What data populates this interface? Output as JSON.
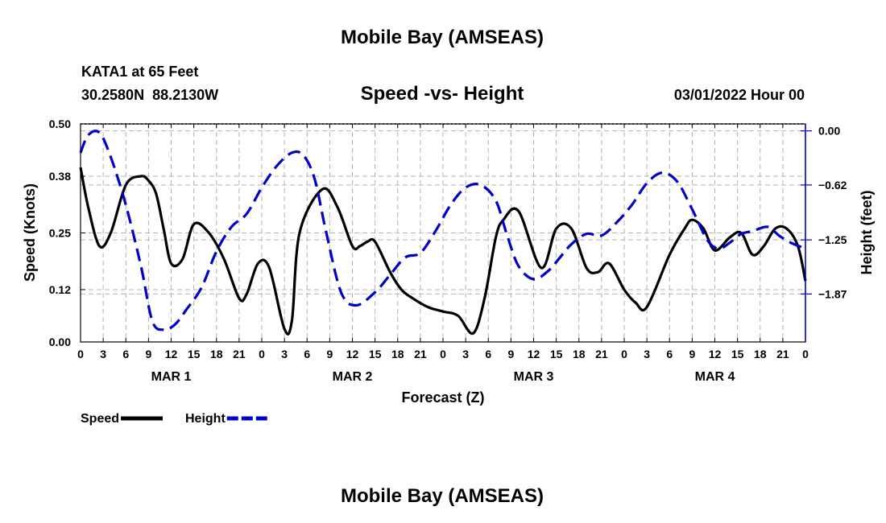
{
  "chart_data": {
    "type": "line",
    "title": "Mobile Bay (AMSEAS)",
    "footer_title": "Mobile Bay (AMSEAS)",
    "station": "KATA1 at 65 Feet",
    "coordinates": "30.2580N  88.2130W",
    "subtitle": "Speed -vs- Height",
    "datetime": "03/01/2022 Hour 00",
    "xlabel": "Forecast (Z)",
    "ylabel_left": "Speed (Knots)",
    "ylabel_right": "Height (feet)",
    "x_hour_range": [
      0,
      96
    ],
    "x_tick_labels": [
      "0",
      "3",
      "6",
      "9",
      "12",
      "15",
      "18",
      "21",
      "0",
      "3",
      "6",
      "9",
      "12",
      "15",
      "18",
      "21",
      "0",
      "3",
      "6",
      "9",
      "12",
      "15",
      "18",
      "21",
      "0",
      "3",
      "6",
      "9",
      "12",
      "15",
      "18",
      "21",
      "0"
    ],
    "day_labels": [
      {
        "label": "MAR 1",
        "hour": 12
      },
      {
        "label": "MAR 2",
        "hour": 36
      },
      {
        "label": "MAR 3",
        "hour": 60
      },
      {
        "label": "MAR 4",
        "hour": 84
      }
    ],
    "y_left": {
      "range": [
        0,
        0.5
      ],
      "ticks": [
        0.0,
        0.12,
        0.25,
        0.38,
        0.5
      ],
      "labels": [
        "0.00",
        "0.12",
        "0.25",
        "0.38",
        "0.50"
      ]
    },
    "y_right": {
      "range": [
        -2.42,
        0.08
      ],
      "ticks": [
        0.0,
        -0.62,
        -1.25,
        -1.87
      ],
      "labels": [
        "0.00",
        "−0.62",
        "−1.25",
        "−1.87"
      ]
    },
    "series": [
      {
        "name": "Speed",
        "axis": "left",
        "color": "#000000",
        "style": "solid",
        "x": [
          0,
          1,
          2.5,
          4,
          6,
          8,
          9,
          10,
          11,
          12,
          13.5,
          15,
          17,
          19,
          21,
          22,
          23.5,
          25,
          27,
          28,
          29,
          32,
          34,
          36,
          37,
          38,
          39,
          41,
          42.5,
          44,
          46,
          48,
          50,
          52,
          53.5,
          55,
          56,
          58,
          61,
          63,
          65,
          67,
          68.5,
          70,
          72,
          73.5,
          75,
          78,
          80,
          81,
          82.5,
          84,
          86,
          87.5,
          89,
          90.5,
          92,
          93.5,
          95,
          96
        ],
        "values": [
          0.4,
          0.31,
          0.22,
          0.25,
          0.36,
          0.38,
          0.37,
          0.34,
          0.26,
          0.18,
          0.19,
          0.27,
          0.25,
          0.19,
          0.1,
          0.11,
          0.18,
          0.17,
          0.03,
          0.05,
          0.25,
          0.35,
          0.31,
          0.22,
          0.22,
          0.23,
          0.23,
          0.16,
          0.12,
          0.1,
          0.08,
          0.07,
          0.06,
          0.02,
          0.1,
          0.24,
          0.28,
          0.3,
          0.17,
          0.26,
          0.26,
          0.17,
          0.16,
          0.18,
          0.12,
          0.09,
          0.08,
          0.2,
          0.26,
          0.28,
          0.26,
          0.21,
          0.24,
          0.25,
          0.2,
          0.22,
          0.26,
          0.26,
          0.22,
          0.14
        ]
      },
      {
        "name": "Height",
        "axis": "right",
        "color": "#0000cc",
        "style": "dashed",
        "x": [
          0,
          1,
          2.5,
          4,
          6,
          8,
          9.5,
          11,
          12.5,
          14,
          16,
          18,
          20,
          22,
          24,
          26,
          28,
          29.5,
          31,
          32.5,
          34.5,
          36.5,
          39,
          41,
          43,
          45,
          47,
          49,
          51,
          53,
          55,
          56.5,
          58,
          60,
          62,
          63.5,
          65,
          67,
          69,
          71,
          73,
          75,
          77,
          79,
          81,
          83,
          84.5,
          86,
          87.5,
          89,
          91,
          92.5,
          94,
          96
        ],
        "values": [
          -0.25,
          -0.05,
          -0.02,
          -0.3,
          -0.85,
          -1.55,
          -2.18,
          -2.28,
          -2.22,
          -2.05,
          -1.8,
          -1.38,
          -1.1,
          -0.95,
          -0.65,
          -0.4,
          -0.25,
          -0.28,
          -0.55,
          -1.15,
          -1.85,
          -2.0,
          -1.85,
          -1.65,
          -1.45,
          -1.4,
          -1.15,
          -0.85,
          -0.65,
          -0.62,
          -0.8,
          -1.2,
          -1.55,
          -1.7,
          -1.6,
          -1.45,
          -1.3,
          -1.18,
          -1.2,
          -1.05,
          -0.85,
          -0.6,
          -0.48,
          -0.58,
          -0.9,
          -1.25,
          -1.35,
          -1.28,
          -1.18,
          -1.15,
          -1.1,
          -1.2,
          -1.28,
          -1.35
        ]
      }
    ],
    "legend": [
      {
        "label": "Speed",
        "color": "#000000",
        "style": "solid"
      },
      {
        "label": "Height",
        "color": "#0000cc",
        "style": "dashed"
      }
    ]
  }
}
